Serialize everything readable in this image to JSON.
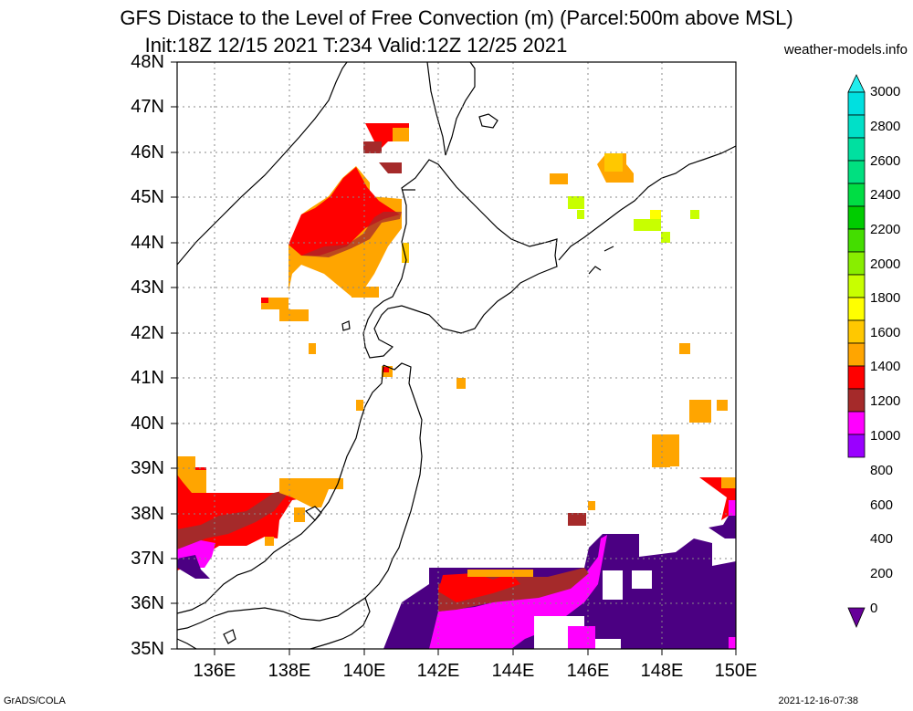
{
  "header": {
    "title_line1": "GFS Distace to the Level of Free Convection (m) (Parcel:500m above MSL)",
    "title_line2": "Init:18Z 12/15 2021 T:234 Valid:12Z 12/25 2021",
    "site": "weather-models.info"
  },
  "map": {
    "lon_range": [
      135,
      150
    ],
    "lat_range": [
      35,
      48
    ],
    "lat_labels": [
      "48N",
      "47N",
      "46N",
      "45N",
      "44N",
      "43N",
      "42N",
      "41N",
      "40N",
      "39N",
      "38N",
      "37N",
      "36N",
      "35N"
    ],
    "lon_labels": [
      "136E",
      "138E",
      "140E",
      "142E",
      "144E",
      "146E",
      "148E",
      "150E"
    ],
    "grid": true
  },
  "colorbar": {
    "labels": [
      "3000",
      "2800",
      "2600",
      "2400",
      "2200",
      "2000",
      "1800",
      "1600",
      "1400",
      "1200",
      "1000",
      "800",
      "600",
      "400",
      "200",
      "0"
    ],
    "colors": [
      "#9a00ff",
      "#ff00ff",
      "#a52a2a",
      "#ff0000",
      "#ffa500",
      "#ffc800",
      "#ffff00",
      "#c8ff00",
      "#88ee00",
      "#44dd00",
      "#00cc00",
      "#00dd44",
      "#00e080",
      "#00e0a0",
      "#00e0c8",
      "#00e0e0"
    ],
    "top_arrow_color": "#22eeee",
    "bottom_arrow_color": "#660099"
  },
  "footer": {
    "left": "GrADS/COLA",
    "right": "2021-12-16-07:38"
  }
}
